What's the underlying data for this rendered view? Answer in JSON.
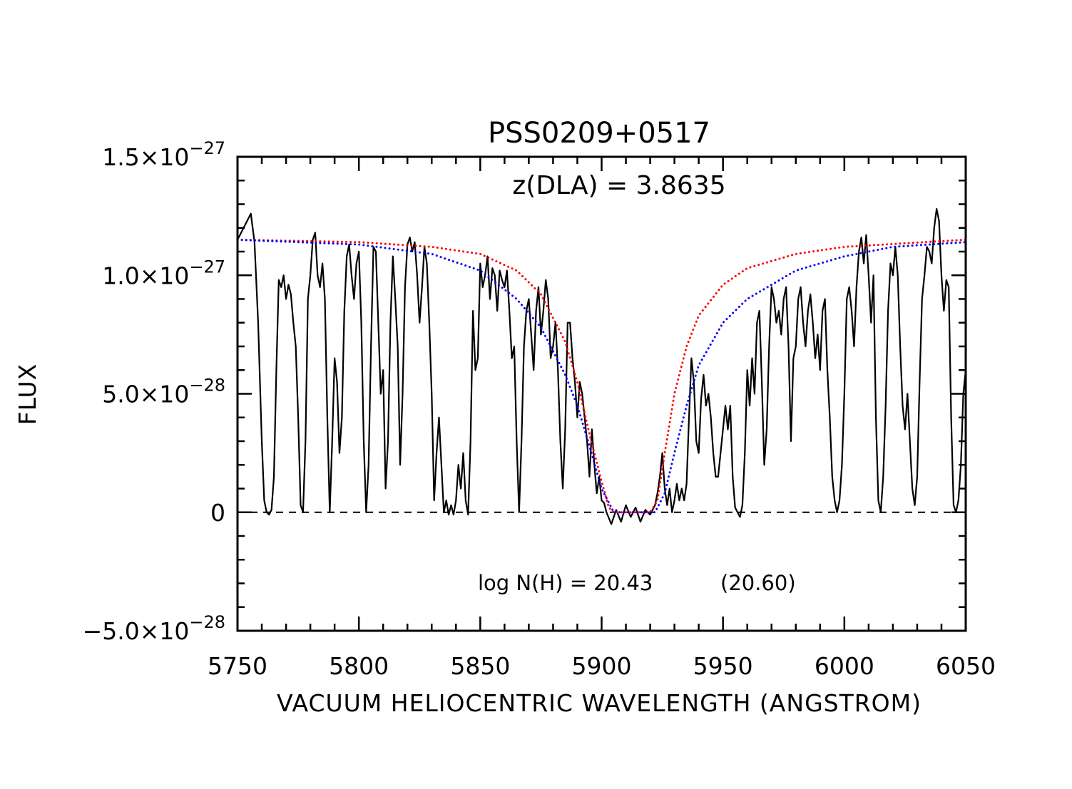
{
  "chart_data": {
    "type": "line",
    "title": "PSS0209+0517",
    "xlabel": "VACUUM HELIOCENTRIC WAVELENGTH (ANGSTROM)",
    "ylabel": "FLUX",
    "annotations": [
      {
        "text": "z(DLA) = 3.8635",
        "color": "#ff0000"
      },
      {
        "text": "log N(H) = 20.43",
        "color": "#ff0000"
      },
      {
        "text": "(20.60)",
        "color": "#0000ff"
      }
    ],
    "xlim": [
      5750,
      6050
    ],
    "xticks": [
      5750,
      5800,
      5850,
      5900,
      5950,
      6000,
      6050
    ],
    "ylim": [
      -5e-28,
      1.5e-27
    ],
    "yticks": [
      {
        "value": -5e-28,
        "label": "−5.0×10−28"
      },
      0,
      {
        "value": 5e-28,
        "label": "5.0×10−28"
      },
      {
        "value": 1e-27,
        "label": "1.0×10−27"
      },
      {
        "value": 1.5e-27,
        "label": "1.5×10−27"
      }
    ],
    "xminor": 5,
    "yminor": 5,
    "zero_line": true,
    "series": [
      {
        "color": "#000000",
        "style": "solid",
        "x": [
          5750,
          5752,
          5754,
          5755.5,
          5757,
          5758.5,
          5760,
          5761,
          5762,
          5763,
          5764,
          5765,
          5766,
          5767,
          5768,
          5769,
          5770,
          5771,
          5772,
          5773,
          5774,
          5775,
          5776,
          5777,
          5778,
          5779,
          5780,
          5781,
          5782,
          5783,
          5784,
          5785,
          5786,
          5787,
          5788,
          5789,
          5790,
          5791,
          5792,
          5793,
          5794,
          5795,
          5796,
          5797,
          5798,
          5799,
          5800,
          5801,
          5802,
          5803,
          5804,
          5805,
          5806,
          5807,
          5808,
          5809,
          5810,
          5811,
          5812,
          5813,
          5814,
          5815,
          5816,
          5817,
          5818,
          5819,
          5820,
          5821,
          5822,
          5823,
          5824,
          5825,
          5826,
          5827,
          5828,
          5829,
          5830,
          5831,
          5832,
          5833,
          5834,
          5835,
          5836,
          5837,
          5838,
          5839,
          5840,
          5841,
          5842,
          5843,
          5844,
          5845,
          5846,
          5847,
          5848,
          5849,
          5850,
          5851,
          5852,
          5853,
          5854,
          5855,
          5856,
          5857,
          5858,
          5859,
          5860,
          5861,
          5862,
          5863,
          5864,
          5865,
          5866,
          5867,
          5868,
          5869,
          5870,
          5871,
          5872,
          5873,
          5874,
          5875,
          5876,
          5877,
          5878,
          5879,
          5880,
          5881,
          5882,
          5883,
          5884,
          5885,
          5886,
          5887,
          5888,
          5889,
          5890,
          5891,
          5892,
          5893,
          5894,
          5895,
          5896,
          5897,
          5898,
          5899,
          5900,
          5901,
          5902,
          5904,
          5906,
          5908,
          5910,
          5912,
          5914,
          5916,
          5918,
          5920,
          5922,
          5923,
          5924,
          5925,
          5926,
          5927,
          5928,
          5929,
          5930,
          5931,
          5932,
          5933,
          5934,
          5935,
          5936,
          5937,
          5938,
          5939,
          5940,
          5941,
          5942,
          5943,
          5944,
          5945,
          5946,
          5947,
          5948,
          5949,
          5950,
          5951,
          5952,
          5953,
          5954,
          5955,
          5956,
          5957,
          5958,
          5959,
          5960,
          5961,
          5962,
          5963,
          5964,
          5965,
          5966,
          5967,
          5968,
          5969,
          5970,
          5971,
          5972,
          5973,
          5974,
          5975,
          5976,
          5977,
          5978,
          5979,
          5980,
          5981,
          5982,
          5983,
          5984,
          5985,
          5986,
          5987,
          5988,
          5989,
          5990,
          5991,
          5992,
          5993,
          5994,
          5995,
          5996,
          5997,
          5998,
          5999,
          6000,
          6001,
          6002,
          6003,
          6004,
          6005,
          6006,
          6007,
          6008,
          6009,
          6010,
          6011,
          6012,
          6013,
          6014,
          6015,
          6016,
          6017,
          6018,
          6019,
          6020,
          6021,
          6022,
          6023,
          6024,
          6025,
          6026,
          6027,
          6028,
          6029,
          6030,
          6031,
          6032,
          6033,
          6034,
          6035,
          6036,
          6037,
          6038,
          6039,
          6040,
          6041,
          6042,
          6043,
          6044,
          6045,
          6046,
          6047,
          6048,
          6049,
          6050
        ],
        "values": [
          1.15e-27,
          1.19e-27,
          1.23e-27,
          1.26e-27,
          1.14e-27,
          8e-28,
          3e-28,
          5e-29,
          0.0,
          -1e-29,
          1e-29,
          1.5e-28,
          6e-28,
          9.8e-28,
          9.5e-28,
          1e-27,
          9e-28,
          9.6e-28,
          9.2e-28,
          8e-28,
          7e-28,
          4e-28,
          3e-29,
          0.0,
          3e-28,
          9e-28,
          1e-27,
          1.15e-27,
          1.18e-27,
          1e-27,
          9.5e-28,
          1.05e-27,
          9e-28,
          4e-28,
          0.0,
          3e-28,
          6.5e-28,
          5.5e-28,
          2.5e-28,
          4e-28,
          8.5e-28,
          1.08e-27,
          1.13e-27,
          1e-27,
          9e-28,
          1.05e-27,
          1.1e-27,
          8e-28,
          3e-28,
          0.0,
          2e-28,
          7e-28,
          1.12e-27,
          1.1e-27,
          8e-28,
          5e-28,
          6e-28,
          1e-28,
          3e-28,
          8e-28,
          1.08e-27,
          9e-28,
          7e-28,
          2e-28,
          5e-28,
          9.5e-28,
          1.13e-27,
          1.16e-27,
          1.1e-27,
          1.14e-27,
          1e-27,
          8e-28,
          9.5e-28,
          1.12e-27,
          1.05e-27,
          8e-28,
          5e-28,
          5e-29,
          2.5e-28,
          4e-28,
          2e-28,
          0.0,
          5e-29,
          -1e-29,
          3e-29,
          -1e-29,
          5e-29,
          2e-28,
          1e-28,
          2.5e-28,
          5e-29,
          -1e-29,
          3e-28,
          8.5e-28,
          6e-28,
          6.5e-28,
          1.05e-27,
          9.5e-28,
          1e-27,
          1.08e-27,
          9e-28,
          1.03e-27,
          1e-27,
          8.5e-28,
          1.02e-27,
          9.8e-28,
          9.5e-28,
          1.02e-27,
          8.5e-28,
          6.5e-28,
          7e-28,
          3e-28,
          0.0,
          3e-28,
          7e-28,
          8.5e-28,
          9e-28,
          7.5e-28,
          6e-28,
          8.5e-28,
          9.5e-28,
          7.5e-28,
          8.5e-28,
          9.8e-28,
          9e-28,
          6.5e-28,
          7e-28,
          8e-28,
          6e-28,
          3e-28,
          1e-28,
          3.5e-28,
          8e-28,
          8e-28,
          6.5e-28,
          5.5e-28,
          4e-28,
          5.5e-28,
          5e-28,
          4e-28,
          3e-28,
          1.5e-28,
          3.5e-28,
          2e-28,
          8e-29,
          1.5e-28,
          5e-29,
          4e-29,
          0.0,
          -5e-29,
          1e-29,
          -4e-29,
          3e-29,
          -2e-29,
          2e-29,
          -4e-29,
          1e-29,
          -1e-29,
          3e-29,
          8e-29,
          1.5e-28,
          2.5e-28,
          1e-28,
          3e-29,
          1e-28,
          0.0,
          5e-29,
          1.2e-28,
          5e-29,
          1e-28,
          5e-29,
          1.2e-28,
          4e-28,
          6.5e-28,
          5.5e-28,
          3e-28,
          2.5e-28,
          4.8e-28,
          5.8e-28,
          4.5e-28,
          5e-28,
          4e-28,
          2.5e-28,
          1.5e-28,
          1.5e-28,
          2.5e-28,
          3.5e-28,
          4.5e-28,
          3.5e-28,
          4.5e-28,
          1.5e-28,
          2e-29,
          0.0,
          -2e-29,
          3e-29,
          2.5e-28,
          6e-28,
          4.5e-28,
          6.5e-28,
          5e-28,
          8e-28,
          8.5e-28,
          5.5e-28,
          2e-28,
          3.5e-28,
          7e-28,
          9.5e-28,
          9e-28,
          8e-28,
          8.5e-28,
          7.5e-28,
          9e-28,
          9.5e-28,
          7e-28,
          3e-28,
          6.5e-28,
          7e-28,
          9e-28,
          9.5e-28,
          8e-28,
          7e-28,
          8.5e-28,
          9.2e-28,
          8e-28,
          6.5e-28,
          7.5e-28,
          6e-28,
          8.5e-28,
          9e-28,
          6e-28,
          4e-28,
          1.5e-28,
          5e-29,
          0.0,
          5e-29,
          2e-28,
          5e-28,
          9e-28,
          9.5e-28,
          8.5e-28,
          7e-28,
          9.5e-28,
          1.1e-27,
          1.16e-27,
          1.05e-27,
          1.17e-27,
          1e-27,
          8e-28,
          1e-27,
          4e-28,
          5e-29,
          0.0,
          1.5e-28,
          4.5e-28,
          8.5e-28,
          1.05e-27,
          1e-27,
          1.12e-27,
          1e-27,
          7e-28,
          4.5e-28,
          3.5e-28,
          5e-28,
          3e-28,
          1e-28,
          3e-29,
          1.5e-28,
          5.5e-28,
          9e-28,
          1e-27,
          1.12e-27,
          1.1e-27,
          1.05e-27,
          1.2e-27,
          1.28e-27,
          1.23e-27,
          1e-27,
          8.5e-28,
          9.8e-28,
          9.5e-28,
          4e-28,
          3e-29,
          0.0,
          5e-29,
          2e-28,
          5e-28,
          6e-28
        ]
      },
      {
        "color": "#ff0000",
        "style": "dotted",
        "x": [
          5750,
          5800,
          5830,
          5850,
          5865,
          5875,
          5885,
          5890,
          5895,
          5900,
          5903,
          5905,
          5920,
          5923,
          5926,
          5930,
          5935,
          5940,
          5950,
          5960,
          5980,
          6000,
          6050
        ],
        "values": [
          1.15e-27,
          1.14e-27,
          1.12e-27,
          1.09e-27,
          1.02e-27,
          9.2e-28,
          7.2e-28,
          5.5e-28,
          3.3e-28,
          1.3e-28,
          2e-29,
          0.0,
          0.0,
          5e-29,
          2.5e-28,
          5e-28,
          7e-28,
          8.3e-28,
          9.6e-28,
          1.03e-27,
          1.09e-27,
          1.12e-27,
          1.15e-27
        ]
      },
      {
        "color": "#0000ff",
        "style": "dotted",
        "x": [
          5750,
          5800,
          5830,
          5850,
          5865,
          5875,
          5885,
          5890,
          5895,
          5900,
          5905,
          5922,
          5926,
          5930,
          5935,
          5940,
          5950,
          5960,
          5980,
          6000,
          6020,
          6050
        ],
        "values": [
          1.15e-27,
          1.13e-27,
          1.09e-27,
          1.02e-27,
          9e-28,
          7.8e-28,
          5.8e-28,
          4.5e-28,
          2.8e-28,
          1e-28,
          0.0,
          0.0,
          8e-29,
          2.5e-28,
          4.5e-28,
          6.2e-28,
          8e-28,
          9e-28,
          1.02e-27,
          1.08e-27,
          1.12e-27,
          1.14e-27
        ]
      }
    ]
  }
}
